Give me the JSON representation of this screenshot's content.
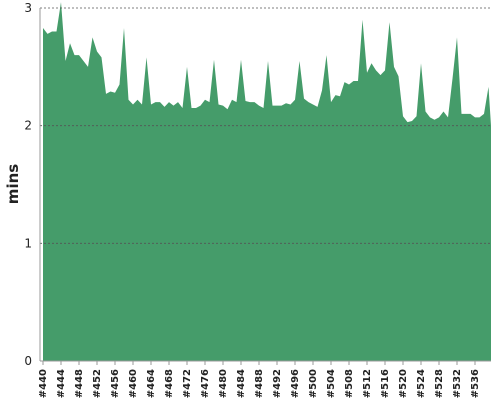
{
  "chart_data": {
    "type": "area",
    "y_label": "mins",
    "color": "#459c6a",
    "categories": [
      "#440",
      null,
      null,
      null,
      "#444",
      null,
      null,
      null,
      "#448",
      null,
      null,
      null,
      "#452",
      null,
      null,
      null,
      "#456",
      null,
      null,
      null,
      "#460",
      null,
      null,
      null,
      "#464",
      null,
      null,
      null,
      "#468",
      null,
      null,
      null,
      "#472",
      null,
      null,
      null,
      "#476",
      null,
      null,
      null,
      "#480",
      null,
      null,
      null,
      "#484",
      null,
      null,
      null,
      "#488",
      null,
      null,
      null,
      "#492",
      null,
      null,
      null,
      "#496",
      null,
      null,
      null,
      "#500",
      null,
      null,
      null,
      "#504",
      null,
      null,
      null,
      "#508",
      null,
      null,
      null,
      "#512",
      null,
      null,
      null,
      "#516",
      null,
      null,
      null,
      "#520",
      null,
      null,
      null,
      "#524",
      null,
      null,
      null,
      "#528",
      null,
      null,
      null,
      "#532",
      null,
      null,
      null,
      "#536",
      null,
      null,
      null,
      null
    ],
    "values": [
      2.83,
      2.78,
      2.8,
      2.8,
      3.05,
      2.55,
      2.7,
      2.6,
      2.6,
      2.55,
      2.5,
      2.75,
      2.63,
      2.58,
      2.27,
      2.29,
      2.28,
      2.35,
      2.83,
      2.22,
      2.18,
      2.22,
      2.18,
      2.58,
      2.18,
      2.2,
      2.2,
      2.16,
      2.2,
      2.17,
      2.2,
      2.15,
      2.5,
      2.15,
      2.15,
      2.17,
      2.22,
      2.2,
      2.56,
      2.18,
      2.17,
      2.14,
      2.22,
      2.2,
      2.56,
      2.21,
      2.2,
      2.2,
      2.17,
      2.15,
      2.55,
      2.17,
      2.17,
      2.17,
      2.19,
      2.18,
      2.22,
      2.55,
      2.23,
      2.2,
      2.18,
      2.16,
      2.3,
      2.6,
      2.2,
      2.26,
      2.25,
      2.37,
      2.35,
      2.38,
      2.38,
      2.9,
      2.45,
      2.53,
      2.47,
      2.43,
      2.47,
      2.88,
      2.5,
      2.42,
      2.08,
      2.03,
      2.04,
      2.08,
      2.53,
      2.12,
      2.07,
      2.05,
      2.07,
      2.12,
      2.07,
      2.4,
      2.75,
      2.1,
      2.1,
      2.1,
      2.07,
      2.07,
      2.1,
      2.33,
      2.0
    ],
    "ylim": [
      0,
      3
    ],
    "yticks": [
      0,
      1,
      2,
      3
    ],
    "grid": true
  }
}
